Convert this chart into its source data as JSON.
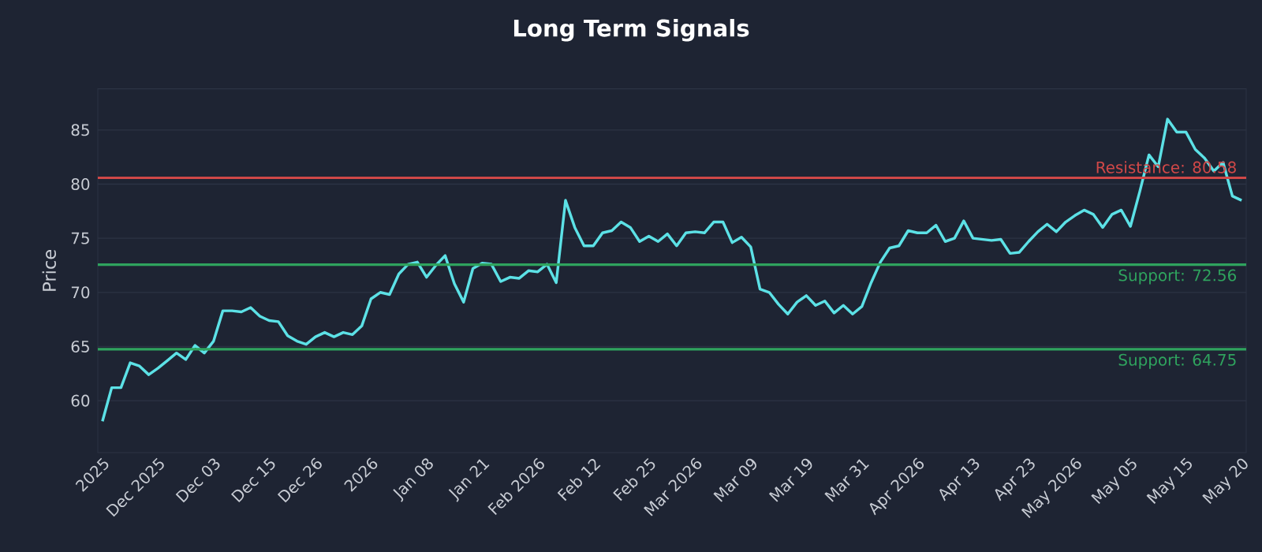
{
  "chart_data": {
    "type": "line",
    "title": "Long Term Signals",
    "ylabel": "Price",
    "categories": [
      "2025",
      null,
      null,
      null,
      null,
      null,
      "Dec 2025",
      null,
      null,
      null,
      null,
      null,
      "Dec 03",
      null,
      null,
      null,
      null,
      null,
      "Dec 15",
      null,
      null,
      null,
      null,
      "Dec 26",
      null,
      null,
      null,
      null,
      null,
      "2026",
      null,
      null,
      null,
      null,
      null,
      "Jan 08",
      null,
      null,
      null,
      null,
      null,
      "Jan 21",
      null,
      null,
      null,
      null,
      null,
      "Feb 2026",
      null,
      null,
      null,
      null,
      null,
      "Feb 12",
      null,
      null,
      null,
      null,
      null,
      "Feb 25",
      null,
      null,
      null,
      null,
      "Mar 2026",
      null,
      null,
      null,
      null,
      null,
      "Mar 09",
      null,
      null,
      null,
      null,
      null,
      "Mar 19",
      null,
      null,
      null,
      null,
      null,
      "Mar 31",
      null,
      null,
      null,
      null,
      null,
      "Apr 2026",
      null,
      null,
      null,
      null,
      null,
      "Apr 13",
      null,
      null,
      null,
      null,
      null,
      "Apr 23",
      null,
      null,
      null,
      null,
      "May 2026",
      null,
      null,
      null,
      null,
      null,
      "May 05",
      null,
      null,
      null,
      null,
      null,
      "May 15",
      null,
      null,
      null,
      null,
      null,
      "May 20"
    ],
    "series": [
      {
        "color": "#5ce1e6",
        "values": [
          58.1,
          61.2,
          61.2,
          63.5,
          63.2,
          62.4,
          63.0,
          63.7,
          64.4,
          63.8,
          65.1,
          64.4,
          65.5,
          68.3,
          68.3,
          68.2,
          68.6,
          67.8,
          67.4,
          67.3,
          66.0,
          65.5,
          65.2,
          65.9,
          66.3,
          65.9,
          66.3,
          66.1,
          66.9,
          69.4,
          70.0,
          69.8,
          71.7,
          72.6,
          72.8,
          71.4,
          72.5,
          73.4,
          70.8,
          69.1,
          72.2,
          72.7,
          72.6,
          71.0,
          71.4,
          71.3,
          72.0,
          71.9,
          72.6,
          70.9,
          78.5,
          76.0,
          74.3,
          74.3,
          75.5,
          75.7,
          76.5,
          76.0,
          74.7,
          75.2,
          74.7,
          75.4,
          74.3,
          75.5,
          75.6,
          75.5,
          76.5,
          76.5,
          74.6,
          75.1,
          74.2,
          70.3,
          70.0,
          68.9,
          68.0,
          69.1,
          69.7,
          68.8,
          69.2,
          68.1,
          68.8,
          68.0,
          68.7,
          70.9,
          72.8,
          74.1,
          74.3,
          75.7,
          75.5,
          75.5,
          76.2,
          74.7,
          75.0,
          76.6,
          75.0,
          74.9,
          74.8,
          74.9,
          73.6,
          73.7,
          74.7,
          75.6,
          76.3,
          75.6,
          76.5,
          77.1,
          77.6,
          77.2,
          76.0,
          77.2,
          77.6,
          76.1,
          79.3,
          82.7,
          81.6,
          86.0,
          84.8,
          84.8,
          83.2,
          82.4,
          81.2,
          82.0,
          78.9,
          78.5
        ]
      }
    ],
    "ylim": [
      55.2,
      88.8
    ],
    "yticks": [
      60,
      65,
      70,
      75,
      80,
      85
    ],
    "grid": "y",
    "marker": "none",
    "line_style": "solid",
    "ref_lines": [
      {
        "axis": "y",
        "value": 80.58,
        "label": "Resistance: 80.58",
        "color": "#d04848"
      },
      {
        "axis": "y",
        "value": 72.56,
        "label": "Support: 72.56",
        "color": "#2fa35e"
      },
      {
        "axis": "y",
        "value": 64.75,
        "label": "Support: 64.75",
        "color": "#2fa35e"
      }
    ]
  }
}
